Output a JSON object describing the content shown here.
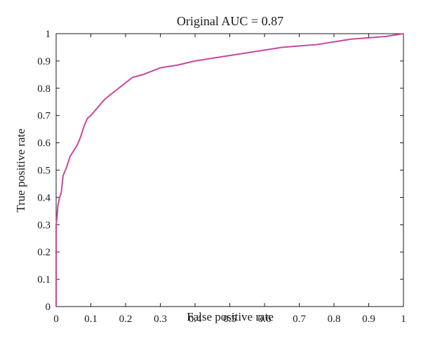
{
  "chart_data": {
    "type": "line",
    "title": "Original AUC = 0.87",
    "xlabel": "False positive rate",
    "ylabel": "True positive rate",
    "xlim": [
      0,
      1
    ],
    "ylim": [
      0,
      1
    ],
    "grid": false,
    "x_ticks": [
      "0",
      "0.1",
      "0.2",
      "0.3",
      "0.4",
      "0.5",
      "0.6",
      "0.7",
      "0.8",
      "0.9",
      "1"
    ],
    "y_ticks": [
      "0",
      "0.1",
      "0.2",
      "0.3",
      "0.4",
      "0.5",
      "0.6",
      "0.7",
      "0.8",
      "0.9",
      "1"
    ],
    "series": [
      {
        "color": "#c8489e",
        "x": [
          0,
          0,
          0.002,
          0.005,
          0.01,
          0.015,
          0.02,
          0.03,
          0.04,
          0.05,
          0.06,
          0.07,
          0.08,
          0.09,
          0.1,
          0.12,
          0.14,
          0.16,
          0.18,
          0.2,
          0.22,
          0.25,
          0.28,
          0.3,
          0.35,
          0.4,
          0.45,
          0.5,
          0.55,
          0.6,
          0.65,
          0.7,
          0.75,
          0.8,
          0.85,
          0.9,
          0.95,
          1.0
        ],
        "y": [
          0,
          0.3,
          0.32,
          0.37,
          0.4,
          0.42,
          0.48,
          0.51,
          0.55,
          0.57,
          0.59,
          0.62,
          0.66,
          0.69,
          0.7,
          0.73,
          0.76,
          0.78,
          0.8,
          0.82,
          0.84,
          0.85,
          0.865,
          0.875,
          0.885,
          0.9,
          0.91,
          0.92,
          0.93,
          0.94,
          0.95,
          0.955,
          0.96,
          0.97,
          0.98,
          0.985,
          0.99,
          1.0
        ]
      }
    ]
  }
}
